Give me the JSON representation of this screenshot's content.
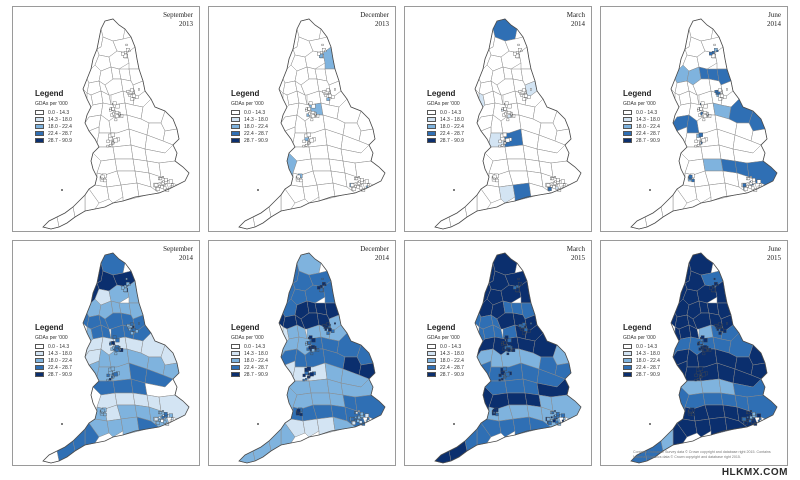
{
  "panels": [
    {
      "title": [
        "September",
        "2013"
      ],
      "level": 0
    },
    {
      "title": [
        "December",
        "2013"
      ],
      "level": 1
    },
    {
      "title": [
        "March",
        "2014"
      ],
      "level": 2
    },
    {
      "title": [
        "June",
        "2014"
      ],
      "level": 3
    },
    {
      "title": [
        "September",
        "2014"
      ],
      "level": 4
    },
    {
      "title": [
        "December",
        "2014"
      ],
      "level": 5
    },
    {
      "title": [
        "March",
        "2015"
      ],
      "level": 6
    },
    {
      "title": [
        "June",
        "2015"
      ],
      "level": 7
    }
  ],
  "legend": {
    "title": "Legend",
    "unit": "GDAs per '000",
    "classes": [
      {
        "label": "0.0 - 14.3",
        "color": "#ffffff"
      },
      {
        "label": "14.3 - 18.0",
        "color": "#d3e4f3"
      },
      {
        "label": "18.0 - 22.4",
        "color": "#7fb3de"
      },
      {
        "label": "22.4 - 28.7",
        "color": "#2f6fb4"
      },
      {
        "label": "28.7 - 90.9",
        "color": "#0b2f6e"
      }
    ]
  },
  "map_style": {
    "outline": "#4a4a4a",
    "boundary": "#8a8a8a"
  },
  "attribution": "Contains Ordnance Survey data © Crown copyright and database right 2015. Contains National Statistics data © Crown copyright and database right 2015.",
  "watermark": "HLKMX.COM"
}
